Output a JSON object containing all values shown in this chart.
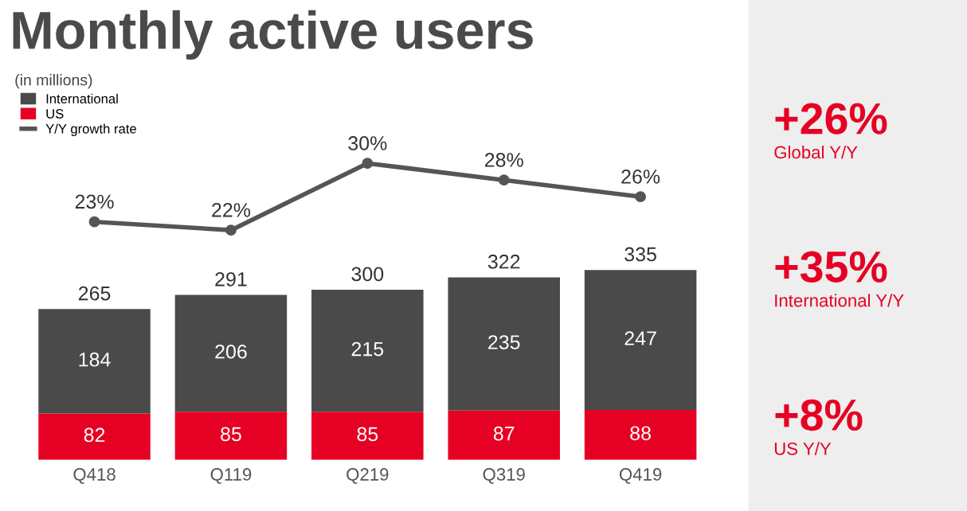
{
  "chart_data": [
    {
      "type": "line",
      "title": "Monthly active users",
      "subtitle": "(in millions)",
      "tick_labels": false,
      "legend": "top left",
      "series": [
        {
          "name": "Y/Y growth rate",
          "color": "#555555",
          "marker": "circle",
          "value_labels": [
            "23%",
            "22%",
            "30%",
            "28%",
            "26%"
          ],
          "values": [
            23,
            22,
            30,
            28,
            26
          ]
        }
      ]
    },
    {
      "type": "bar",
      "categories": [
        "Q418",
        "Q119",
        "Q219",
        "Q319",
        "Q419"
      ],
      "stacked": true,
      "data_labels": true,
      "totals": [
        "265",
        "291",
        "300",
        "322",
        "335"
      ],
      "tick_labels": "x",
      "legend": "top left",
      "series": [
        {
          "name": "US",
          "color": "#e60023",
          "values": [
            82,
            85,
            85,
            87,
            88
          ]
        },
        {
          "name": "International",
          "color": "#4a4a4a",
          "values": [
            184,
            206,
            215,
            235,
            247
          ]
        }
      ],
      "annotations": [
        "+26%",
        "Global Y/Y",
        "+35%",
        "International Y/Y",
        "+8%",
        "US Y/Y"
      ]
    }
  ]
}
